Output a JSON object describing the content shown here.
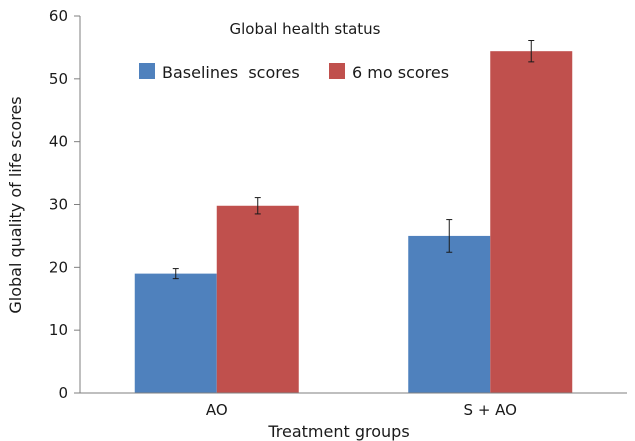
{
  "chart_data": {
    "type": "bar",
    "title": "Global health status",
    "xlabel": "Treatment groups",
    "ylabel": "Global quality of life scores",
    "categories": [
      "AO",
      "S + AO"
    ],
    "ylim": [
      0,
      60
    ],
    "yticks": [
      0,
      10,
      20,
      30,
      40,
      50,
      60
    ],
    "grid": false,
    "legend_position": "top",
    "series": [
      {
        "name": "Baselines  scores",
        "color": "#4f81bd",
        "values": [
          19.0,
          25.0
        ],
        "errors": [
          0.8,
          2.6
        ]
      },
      {
        "name": "6 mo scores",
        "color": "#c0504d",
        "values": [
          29.8,
          54.4
        ],
        "errors": [
          1.3,
          1.7
        ]
      }
    ]
  }
}
